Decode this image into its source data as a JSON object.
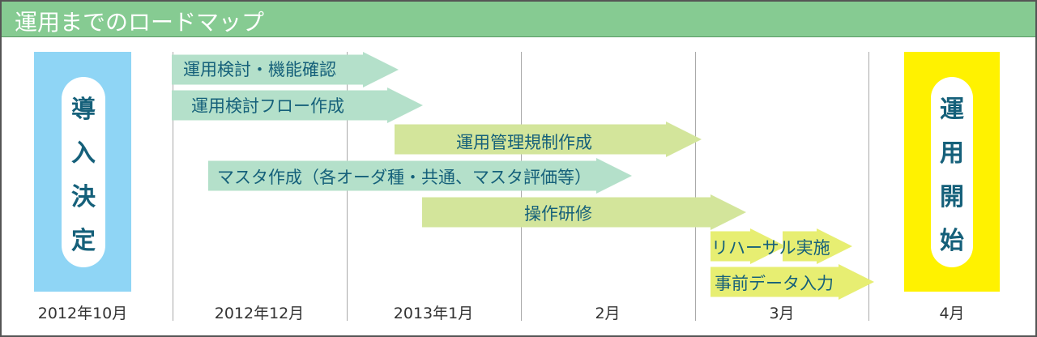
{
  "title": "運用までのロードマップ",
  "columns": [
    "2012年10月",
    "2012年12月",
    "2013年1月",
    "2月",
    "3月",
    "4月"
  ],
  "start_box": {
    "chars": [
      "導",
      "入",
      "決",
      "定"
    ],
    "color": "#8fd5f5"
  },
  "end_box": {
    "chars": [
      "運",
      "用",
      "開",
      "始"
    ],
    "color": "#fff200"
  },
  "tasks": [
    {
      "label": "運用検討・機能確認",
      "color": "#b4e0ca"
    },
    {
      "label": "運用検討フロー作成",
      "color": "#b4e0ca"
    },
    {
      "label": "運用管理規制作成",
      "color": "#d3e59b"
    },
    {
      "label": "マスタ作成（各オーダ種・共通、マスタ評価等）",
      "color": "#b4e0ca"
    },
    {
      "label": "操作研修",
      "color": "#d3e59b"
    },
    {
      "label": "リハーサル実施",
      "color": "#e7ee72"
    },
    {
      "label": "事前データ入力",
      "color": "#e7ee72"
    }
  ],
  "colors": {
    "header": "#86cb92",
    "text": "#15607a"
  }
}
